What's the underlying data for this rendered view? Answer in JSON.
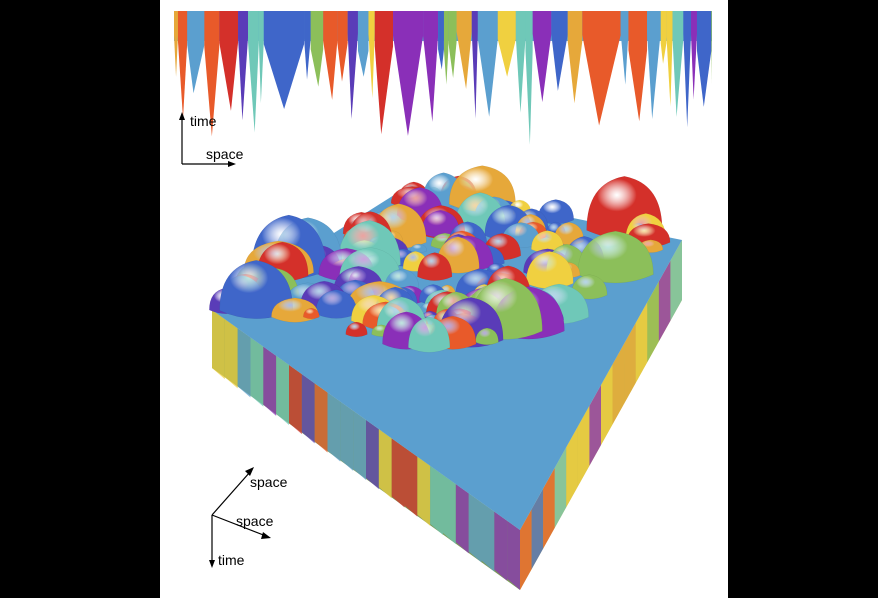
{
  "figure_2d": {
    "axis_time_label": "time",
    "axis_space_label": "space"
  },
  "figure_3d": {
    "axis_space_label_1": "space",
    "axis_space_label_2": "space",
    "axis_time_label": "time"
  },
  "palette": [
    "#3f66c9",
    "#8cbf5a",
    "#e6a83a",
    "#e85a2a",
    "#5b9fcf",
    "#5a3cb8",
    "#d4302a",
    "#f0d040",
    "#6fc8b8",
    "#8a2fb8"
  ]
}
